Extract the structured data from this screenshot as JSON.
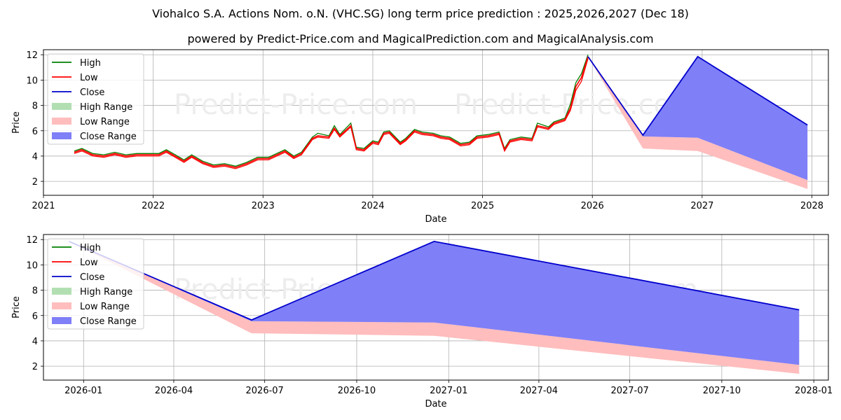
{
  "title": "Viohalco S.A. Actions Nom. o.N. (VHC.SG) long term price prediction : 2025,2026,2027 (Dec 18)",
  "subtitle": "powered by Predict-Price.com and MagicalPrediction.com and MagicalAnalysis.com",
  "watermark": "Predict-Price.com",
  "legend_items": [
    "High",
    "Low",
    "Close",
    "High Range",
    "Low Range",
    "Close Range"
  ],
  "colors": {
    "high": "#008000",
    "low": "#ff0000",
    "close": "#0000cc",
    "high_range": "#b2dfb2",
    "low_range": "#ffbdbd",
    "close_range": "#7f7ff7",
    "grid": "#b0b0b0"
  },
  "chart_data": [
    {
      "type": "line",
      "name": "long-term-history",
      "xlabel": "Date",
      "ylabel": "Price",
      "xlim": [
        2021.0,
        2028.15
      ],
      "ylim": [
        0.9,
        12.4
      ],
      "x_ticks": [
        2021,
        2022,
        2023,
        2024,
        2025,
        2026,
        2027,
        2028
      ],
      "x_tick_labels": [
        "2021",
        "2022",
        "2023",
        "2024",
        "2025",
        "2026",
        "2027",
        "2028"
      ],
      "y_ticks": [
        2,
        4,
        6,
        8,
        10,
        12
      ],
      "history": {
        "x": [
          2021.28,
          2021.35,
          2021.45,
          2021.55,
          2021.65,
          2021.75,
          2021.85,
          2021.95,
          2022.05,
          2022.12,
          2022.2,
          2022.28,
          2022.35,
          2022.45,
          2022.55,
          2022.65,
          2022.75,
          2022.85,
          2022.95,
          2023.05,
          2023.15,
          2023.2,
          2023.28,
          2023.35,
          2023.45,
          2023.5,
          2023.6,
          2023.65,
          2023.7,
          2023.8,
          2023.85,
          2023.92,
          2024.0,
          2024.05,
          2024.1,
          2024.15,
          2024.25,
          2024.3,
          2024.38,
          2024.45,
          2024.55,
          2024.62,
          2024.7,
          2024.8,
          2024.88,
          2024.95,
          2025.05,
          2025.15,
          2025.2,
          2025.25,
          2025.35,
          2025.45,
          2025.5,
          2025.6,
          2025.65,
          2025.75,
          2025.8,
          2025.85,
          2025.9,
          2025.96
        ],
        "close": [
          4.3,
          4.5,
          4.1,
          4.0,
          4.2,
          4.0,
          4.1,
          4.1,
          4.1,
          4.4,
          4.0,
          3.6,
          4.0,
          3.5,
          3.2,
          3.3,
          3.1,
          3.4,
          3.8,
          3.8,
          4.2,
          4.4,
          3.9,
          4.2,
          5.4,
          5.6,
          5.5,
          6.2,
          5.6,
          6.4,
          4.6,
          4.5,
          5.1,
          5.0,
          5.8,
          5.9,
          5.0,
          5.3,
          6.0,
          5.8,
          5.7,
          5.5,
          5.4,
          4.9,
          5.0,
          5.5,
          5.6,
          5.8,
          4.5,
          5.2,
          5.4,
          5.3,
          6.4,
          6.2,
          6.6,
          6.9,
          7.8,
          9.5,
          10.2,
          11.85
        ],
        "line_high": [
          4.4,
          4.6,
          4.2,
          4.1,
          4.3,
          4.1,
          4.2,
          4.2,
          4.2,
          4.5,
          4.1,
          3.7,
          4.1,
          3.6,
          3.3,
          3.4,
          3.2,
          3.5,
          3.9,
          3.9,
          4.3,
          4.5,
          4.0,
          4.3,
          5.5,
          5.8,
          5.6,
          6.4,
          5.7,
          6.6,
          4.7,
          4.6,
          5.2,
          5.1,
          5.9,
          6.0,
          5.1,
          5.4,
          6.1,
          5.9,
          5.8,
          5.6,
          5.5,
          5.0,
          5.1,
          5.6,
          5.7,
          5.9,
          4.6,
          5.3,
          5.5,
          5.4,
          6.6,
          6.3,
          6.7,
          7.0,
          8.1,
          9.8,
          10.5,
          12.0
        ],
        "line_low": [
          4.2,
          4.4,
          4.0,
          3.9,
          4.1,
          3.9,
          4.0,
          4.0,
          4.0,
          4.3,
          3.9,
          3.5,
          3.9,
          3.4,
          3.1,
          3.2,
          3.0,
          3.3,
          3.7,
          3.7,
          4.1,
          4.3,
          3.8,
          4.1,
          5.3,
          5.5,
          5.4,
          6.1,
          5.5,
          6.3,
          4.5,
          4.4,
          5.0,
          4.9,
          5.7,
          5.8,
          4.9,
          5.2,
          5.9,
          5.7,
          5.6,
          5.4,
          5.3,
          4.8,
          4.9,
          5.4,
          5.5,
          5.7,
          4.4,
          5.1,
          5.3,
          5.2,
          6.3,
          6.1,
          6.5,
          6.8,
          7.6,
          9.2,
          9.9,
          11.7
        ]
      },
      "prediction": {
        "x": [
          2025.96,
          2026.46,
          2026.96,
          2027.96
        ],
        "close": [
          11.85,
          5.65,
          11.85,
          6.45
        ],
        "low_range_upper": [
          11.85,
          5.55,
          5.45,
          2.1
        ],
        "low_range_lower": [
          11.85,
          4.6,
          4.4,
          1.4
        ],
        "close_range_lower": [
          11.85,
          5.55,
          5.45,
          2.1
        ]
      }
    },
    {
      "type": "line",
      "name": "prediction-zoom",
      "xlabel": "Date",
      "ylabel": "Price",
      "xlim": [
        2025.89,
        2028.04
      ],
      "ylim": [
        0.9,
        12.4
      ],
      "x_ticks": [
        2026.0,
        2026.247,
        2026.496,
        2026.748,
        2027.0,
        2027.247,
        2027.496,
        2027.748,
        2028.0
      ],
      "x_tick_labels": [
        "2026-01",
        "2026-04",
        "2026-07",
        "2026-10",
        "2027-01",
        "2027-04",
        "2027-07",
        "2027-10",
        "2028-01"
      ],
      "y_ticks": [
        2,
        4,
        6,
        8,
        10,
        12
      ],
      "prediction": {
        "x": [
          2025.96,
          2026.46,
          2026.96,
          2027.96
        ],
        "close": [
          11.85,
          5.65,
          11.85,
          6.45
        ],
        "low_range_upper": [
          11.85,
          5.55,
          5.45,
          2.1
        ],
        "low_range_lower": [
          11.85,
          4.6,
          4.4,
          1.4
        ],
        "close_range_lower": [
          11.85,
          5.55,
          5.45,
          2.1
        ]
      }
    }
  ]
}
